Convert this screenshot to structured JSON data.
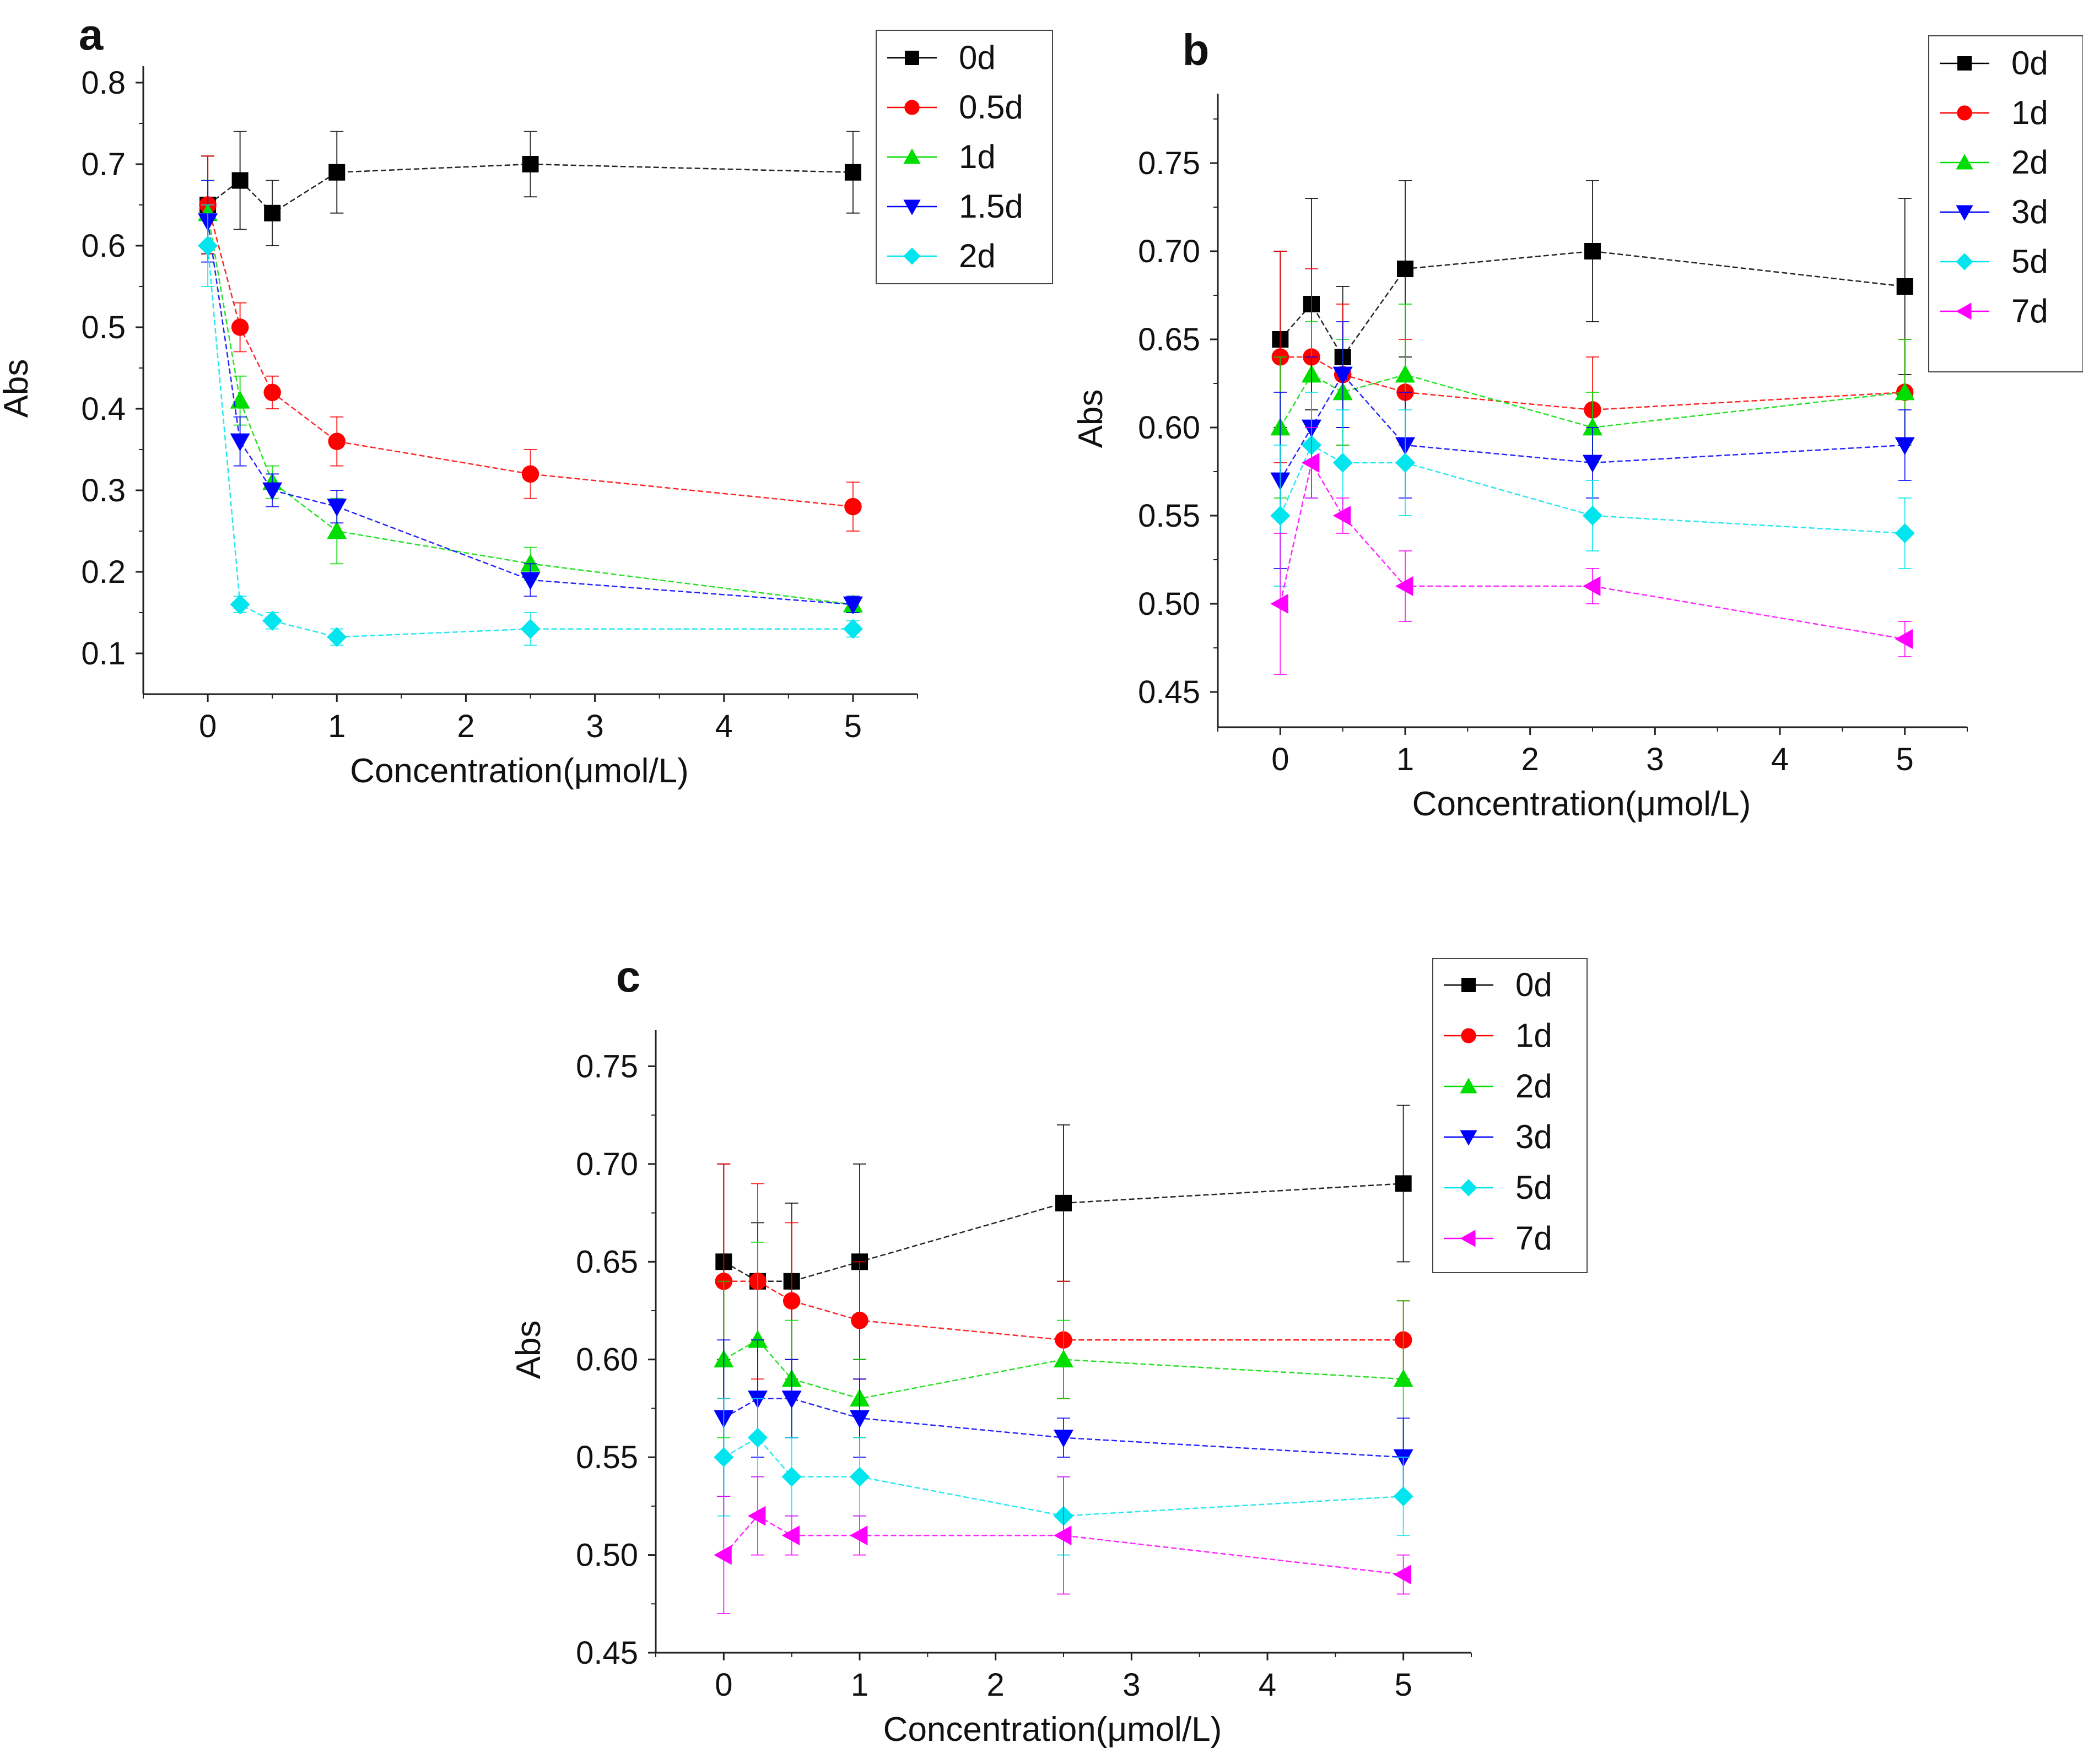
{
  "chart_data": [
    {
      "panel": "a",
      "type": "line",
      "xlabel": "Concentration(μmol/L)",
      "ylabel": "Abs",
      "xlim": [
        -0.5,
        5.5
      ],
      "ylim": [
        0.05,
        0.8
      ],
      "xticks": [
        0,
        1,
        2,
        3,
        4,
        5
      ],
      "yticks": [
        0.1,
        0.2,
        0.3,
        0.4,
        0.5,
        0.6,
        0.7,
        0.8
      ],
      "ytick_labels": [
        "0.1",
        "0.2",
        "0.3",
        "0.4",
        "0.5",
        "0.6",
        "0.7",
        "0.8"
      ],
      "legend_position": "top-right",
      "grid": false,
      "x": [
        0,
        0.25,
        0.5,
        1,
        2.5,
        5
      ],
      "series": [
        {
          "name": "0d",
          "color": "#000000",
          "marker": "square",
          "values": [
            0.65,
            0.68,
            0.64,
            0.69,
            0.7,
            0.69
          ],
          "errors": [
            0.06,
            0.06,
            0.04,
            0.05,
            0.04,
            0.05
          ]
        },
        {
          "name": "0.5d",
          "color": "#ff0000",
          "marker": "circle",
          "values": [
            0.65,
            0.5,
            0.42,
            0.36,
            0.32,
            0.28
          ],
          "errors": [
            0.06,
            0.03,
            0.02,
            0.03,
            0.03,
            0.03
          ]
        },
        {
          "name": "1d",
          "color": "#00dd00",
          "marker": "triangle-up",
          "values": [
            0.64,
            0.41,
            0.31,
            0.25,
            0.21,
            0.16
          ],
          "errors": [
            0.04,
            0.03,
            0.02,
            0.04,
            0.02,
            0.01
          ]
        },
        {
          "name": "1.5d",
          "color": "#0000ff",
          "marker": "triangle-down",
          "values": [
            0.63,
            0.36,
            0.3,
            0.28,
            0.19,
            0.16
          ],
          "errors": [
            0.05,
            0.03,
            0.02,
            0.02,
            0.02,
            0.01
          ]
        },
        {
          "name": "2d",
          "color": "#00e5ee",
          "marker": "diamond",
          "values": [
            0.6,
            0.16,
            0.14,
            0.12,
            0.13,
            0.13
          ],
          "errors": [
            0.05,
            0.01,
            0.01,
            0.01,
            0.02,
            0.01
          ]
        }
      ]
    },
    {
      "panel": "b",
      "type": "line",
      "xlabel": "Concentration(μmol/L)",
      "ylabel": "Abs",
      "xlim": [
        -0.5,
        5.5
      ],
      "ylim": [
        0.43,
        0.78
      ],
      "xticks": [
        0,
        1,
        2,
        3,
        4,
        5
      ],
      "yticks": [
        0.45,
        0.5,
        0.55,
        0.6,
        0.65,
        0.7,
        0.75
      ],
      "ytick_labels": [
        "0.45",
        "0.50",
        "0.55",
        "0.60",
        "0.65",
        "0.70",
        "0.75"
      ],
      "legend_position": "top-right",
      "grid": false,
      "x": [
        0,
        0.25,
        0.5,
        1,
        2.5,
        5
      ],
      "series": [
        {
          "name": "0d",
          "color": "#000000",
          "marker": "square",
          "values": [
            0.65,
            0.67,
            0.64,
            0.69,
            0.7,
            0.68
          ],
          "errors": [
            0.05,
            0.06,
            0.04,
            0.05,
            0.04,
            0.05
          ]
        },
        {
          "name": "1d",
          "color": "#ff0000",
          "marker": "circle",
          "values": [
            0.64,
            0.64,
            0.63,
            0.62,
            0.61,
            0.62
          ],
          "errors": [
            0.06,
            0.05,
            0.04,
            0.03,
            0.03,
            0.03
          ]
        },
        {
          "name": "2d",
          "color": "#00dd00",
          "marker": "triangle-up",
          "values": [
            0.6,
            0.63,
            0.62,
            0.63,
            0.6,
            0.62
          ],
          "errors": [
            0.04,
            0.03,
            0.03,
            0.04,
            0.02,
            0.03
          ]
        },
        {
          "name": "3d",
          "color": "#0000ff",
          "marker": "triangle-down",
          "values": [
            0.57,
            0.6,
            0.63,
            0.59,
            0.58,
            0.59
          ],
          "errors": [
            0.05,
            0.04,
            0.03,
            0.03,
            0.02,
            0.02
          ]
        },
        {
          "name": "5d",
          "color": "#00e5ee",
          "marker": "diamond",
          "values": [
            0.55,
            0.59,
            0.58,
            0.58,
            0.55,
            0.54
          ],
          "errors": [
            0.04,
            0.03,
            0.03,
            0.03,
            0.02,
            0.02
          ]
        },
        {
          "name": "7d",
          "color": "#ff00ff",
          "marker": "triangle-left",
          "values": [
            0.5,
            0.58,
            0.55,
            0.51,
            0.51,
            0.48
          ],
          "errors": [
            0.04,
            0.02,
            0.01,
            0.02,
            0.01,
            0.01
          ]
        }
      ]
    },
    {
      "panel": "c",
      "type": "line",
      "xlabel": "Concentration(μmol/L)",
      "ylabel": "Abs",
      "xlim": [
        -0.5,
        5.5
      ],
      "ylim": [
        0.45,
        0.76
      ],
      "xticks": [
        0,
        1,
        2,
        3,
        4,
        5
      ],
      "yticks": [
        0.45,
        0.5,
        0.55,
        0.6,
        0.65,
        0.7,
        0.75
      ],
      "ytick_labels": [
        "0.45",
        "0.50",
        "0.55",
        "0.60",
        "0.65",
        "0.70",
        "0.75"
      ],
      "legend_position": "top-right",
      "grid": false,
      "x": [
        0,
        0.25,
        0.5,
        1,
        2.5,
        5
      ],
      "series": [
        {
          "name": "0d",
          "color": "#000000",
          "marker": "square",
          "values": [
            0.65,
            0.64,
            0.64,
            0.65,
            0.68,
            0.69
          ],
          "errors": [
            0.05,
            0.03,
            0.04,
            0.05,
            0.04,
            0.04
          ]
        },
        {
          "name": "1d",
          "color": "#ff0000",
          "marker": "circle",
          "values": [
            0.64,
            0.64,
            0.63,
            0.62,
            0.61,
            0.61
          ],
          "errors": [
            0.06,
            0.05,
            0.04,
            0.03,
            0.03,
            0.02
          ]
        },
        {
          "name": "2d",
          "color": "#00dd00",
          "marker": "triangle-up",
          "values": [
            0.6,
            0.61,
            0.59,
            0.58,
            0.6,
            0.59
          ],
          "errors": [
            0.04,
            0.05,
            0.03,
            0.02,
            0.02,
            0.04
          ]
        },
        {
          "name": "3d",
          "color": "#0000ff",
          "marker": "triangle-down",
          "values": [
            0.57,
            0.58,
            0.58,
            0.57,
            0.56,
            0.55
          ],
          "errors": [
            0.04,
            0.03,
            0.02,
            0.02,
            0.01,
            0.02
          ]
        },
        {
          "name": "5d",
          "color": "#00e5ee",
          "marker": "diamond",
          "values": [
            0.55,
            0.56,
            0.54,
            0.54,
            0.52,
            0.53
          ],
          "errors": [
            0.03,
            0.02,
            0.02,
            0.02,
            0.02,
            0.02
          ]
        },
        {
          "name": "7d",
          "color": "#ff00ff",
          "marker": "triangle-left",
          "values": [
            0.5,
            0.52,
            0.51,
            0.51,
            0.51,
            0.49
          ],
          "errors": [
            0.03,
            0.02,
            0.01,
            0.01,
            0.03,
            0.01
          ]
        }
      ]
    }
  ]
}
